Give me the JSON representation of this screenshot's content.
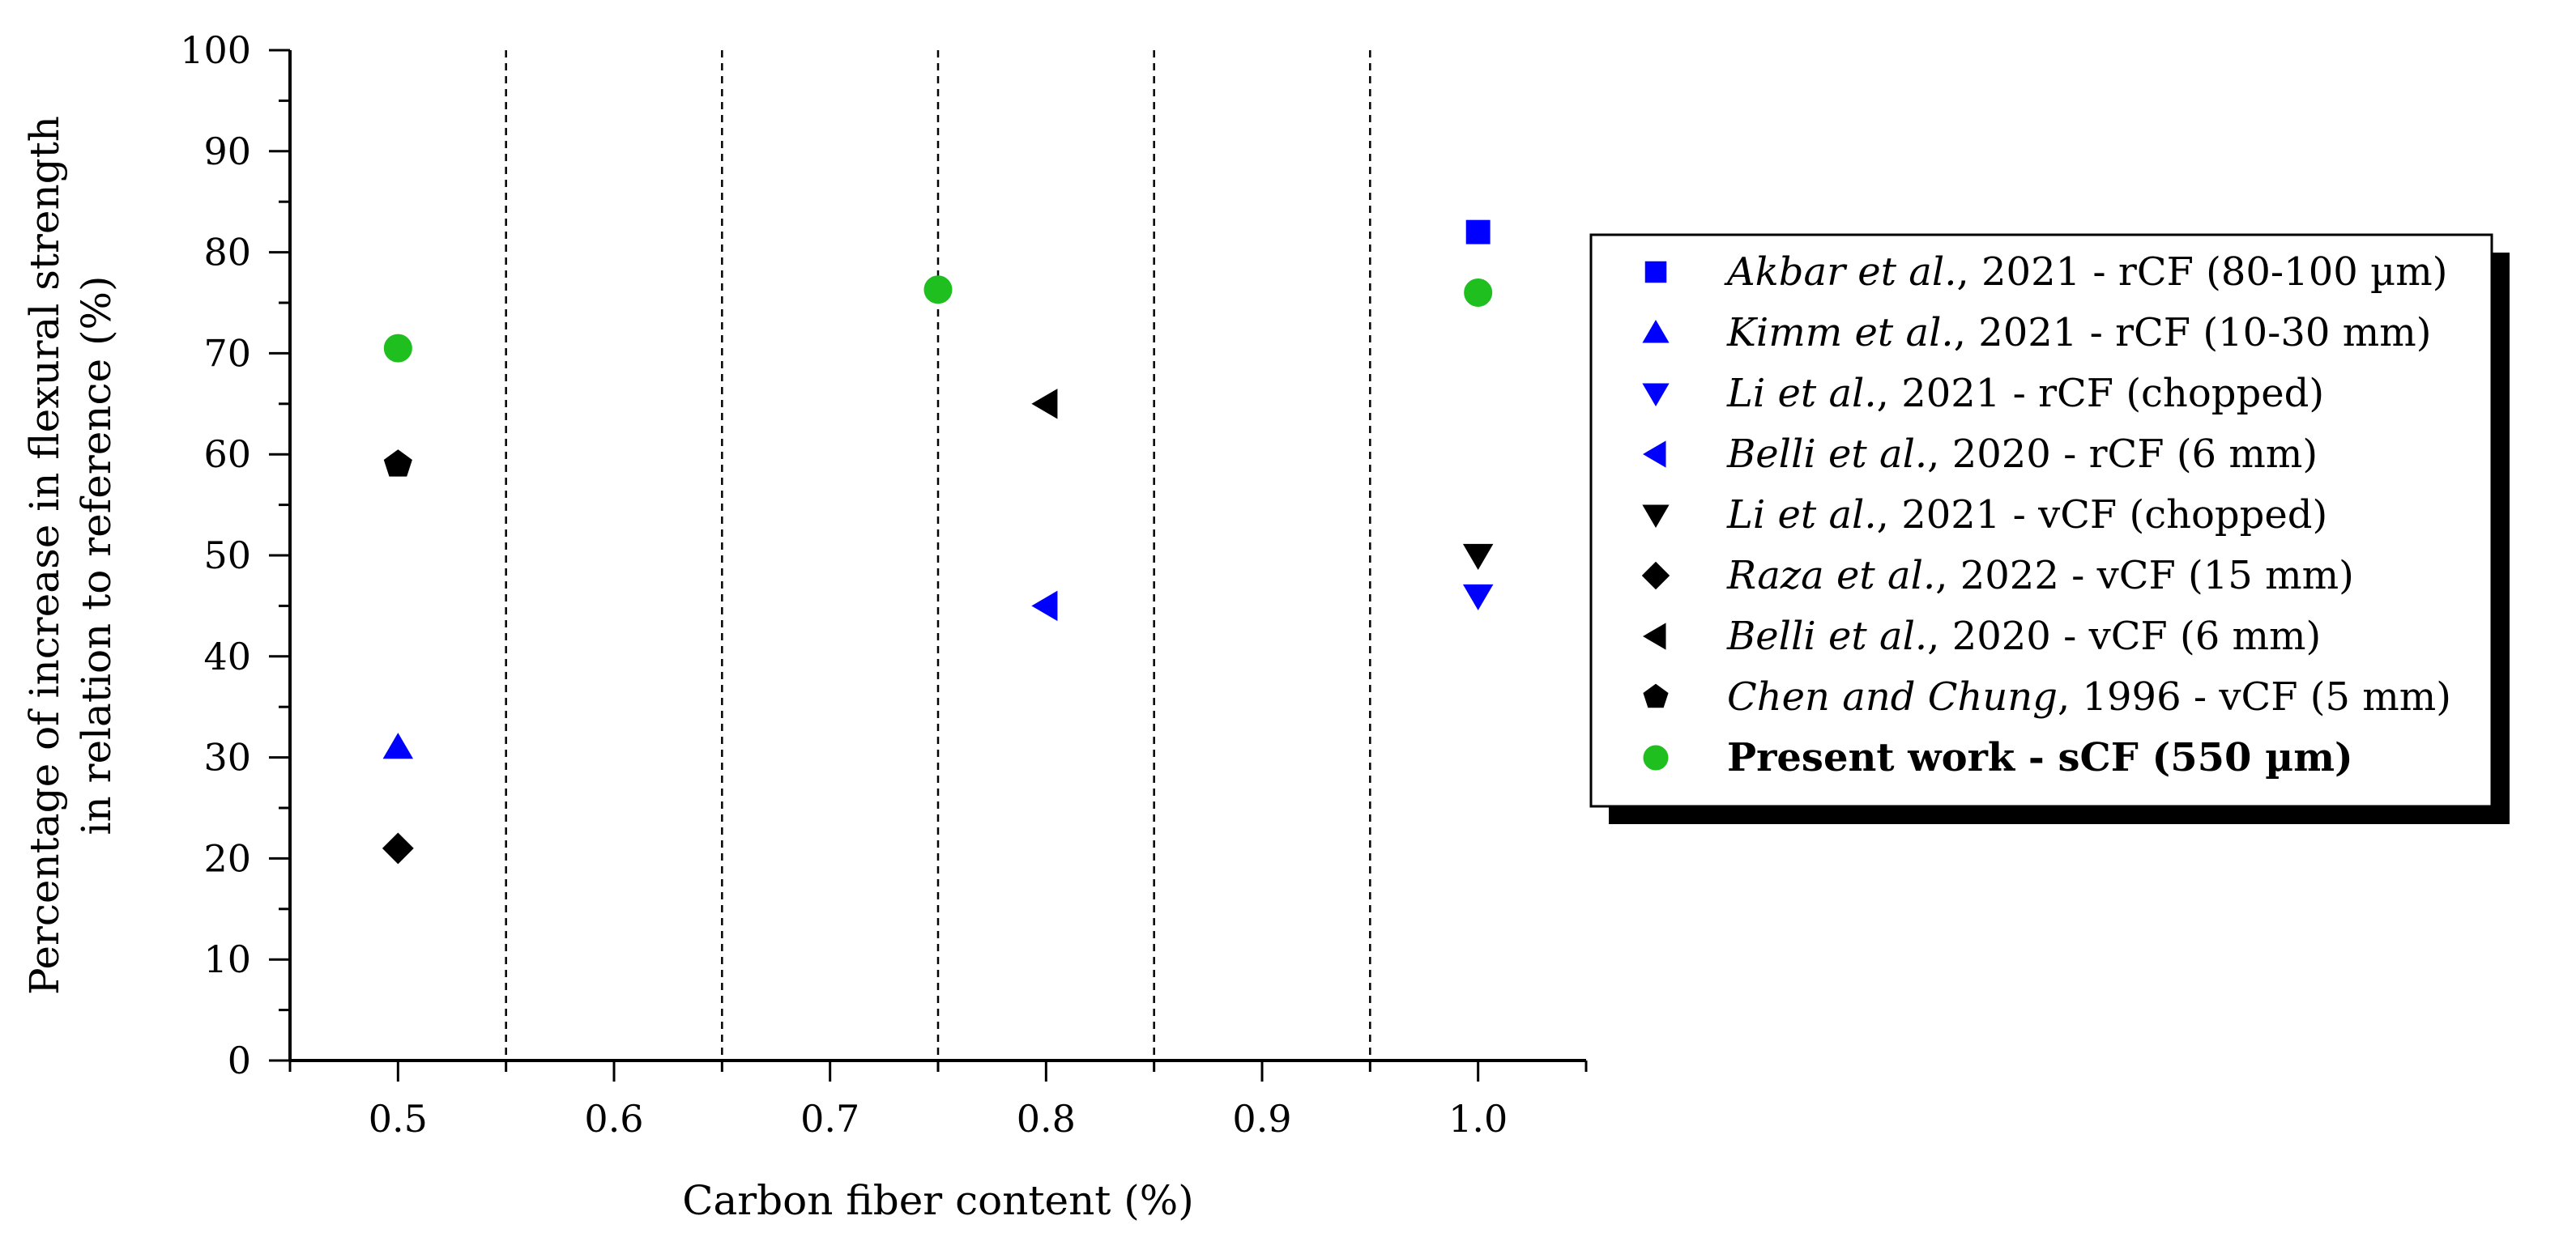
{
  "chart_data": {
    "type": "scatter",
    "xlabel": "Carbon fiber content (%)",
    "ylabel_line1": "Percentage of increase in flexural strength",
    "ylabel_line2": "in relation to reference (%)",
    "xlim": [
      0.45,
      1.05
    ],
    "ylim": [
      0,
      100
    ],
    "x_ticks": [
      0.5,
      0.6,
      0.7,
      0.8,
      0.9,
      1.0
    ],
    "x_tick_labels": [
      "0.5",
      "0.6",
      "0.7",
      "0.8",
      "0.9",
      "1.0"
    ],
    "y_ticks": [
      0,
      10,
      20,
      30,
      40,
      50,
      60,
      70,
      80,
      90,
      100
    ],
    "y_tick_labels": [
      "0",
      "10",
      "20",
      "30",
      "40",
      "50",
      "60",
      "70",
      "80",
      "90",
      "100"
    ],
    "vertical_dashed_lines_at": [
      0.55,
      0.65,
      0.75,
      0.85,
      0.95
    ],
    "legend_position": "right",
    "series": [
      {
        "name": "Akbar et al., 2021 - rCF (80-100 µm)",
        "name_italic": "Akbar et al.",
        "name_rest": ", 2021 - rCF (80-100 µm)",
        "marker": "square",
        "color": "#0000ff",
        "points": [
          {
            "x": 1.0,
            "y": 82
          }
        ]
      },
      {
        "name": "Kimm et al., 2021 - rCF (10-30 mm)",
        "name_italic": "Kimm et al.",
        "name_rest": ", 2021 - rCF (10-30 mm)",
        "marker": "triangle-up",
        "color": "#0000ff",
        "points": [
          {
            "x": 0.5,
            "y": 31
          }
        ]
      },
      {
        "name": "Li et al., 2021 - rCF (chopped)",
        "name_italic": "Li et al.",
        "name_rest": ", 2021 - rCF (chopped)",
        "marker": "triangle-down",
        "color": "#0000ff",
        "points": [
          {
            "x": 1.0,
            "y": 46
          }
        ]
      },
      {
        "name": "Belli et al., 2020 - rCF (6 mm)",
        "name_italic": "Belli et al.",
        "name_rest": ", 2020 - rCF (6 mm)",
        "marker": "triangle-left",
        "color": "#0000ff",
        "points": [
          {
            "x": 0.8,
            "y": 45
          }
        ]
      },
      {
        "name": "Li et al., 2021 - vCF (chopped)",
        "name_italic": "Li et al.",
        "name_rest": ", 2021 - vCF (chopped)",
        "marker": "triangle-down",
        "color": "#000000",
        "points": [
          {
            "x": 1.0,
            "y": 50
          }
        ]
      },
      {
        "name": "Raza et al., 2022 - vCF (15 mm)",
        "name_italic": "Raza et al.",
        "name_rest": ", 2022 - vCF (15 mm)",
        "marker": "diamond",
        "color": "#000000",
        "points": [
          {
            "x": 0.5,
            "y": 21
          }
        ]
      },
      {
        "name": "Belli et al., 2020 - vCF (6 mm)",
        "name_italic": "Belli et al.",
        "name_rest": ", 2020 - vCF (6 mm)",
        "marker": "triangle-left",
        "color": "#000000",
        "points": [
          {
            "x": 0.8,
            "y": 65
          }
        ]
      },
      {
        "name": "Chen and Chung, 1996 - vCF (5 mm)",
        "name_italic": "Chen and Chung",
        "name_rest": ", 1996 - vCF (5 mm)",
        "marker": "pentagon",
        "color": "#000000",
        "points": [
          {
            "x": 0.5,
            "y": 59
          }
        ]
      },
      {
        "name": "Present work - sCF (550 µm)",
        "name_italic": "",
        "name_rest": "Present work - sCF (550 µm)",
        "bold": true,
        "marker": "circle",
        "color": "#1fbf1f",
        "points": [
          {
            "x": 0.5,
            "y": 70.5
          },
          {
            "x": 0.75,
            "y": 76.3
          },
          {
            "x": 1.0,
            "y": 76
          }
        ]
      }
    ]
  }
}
